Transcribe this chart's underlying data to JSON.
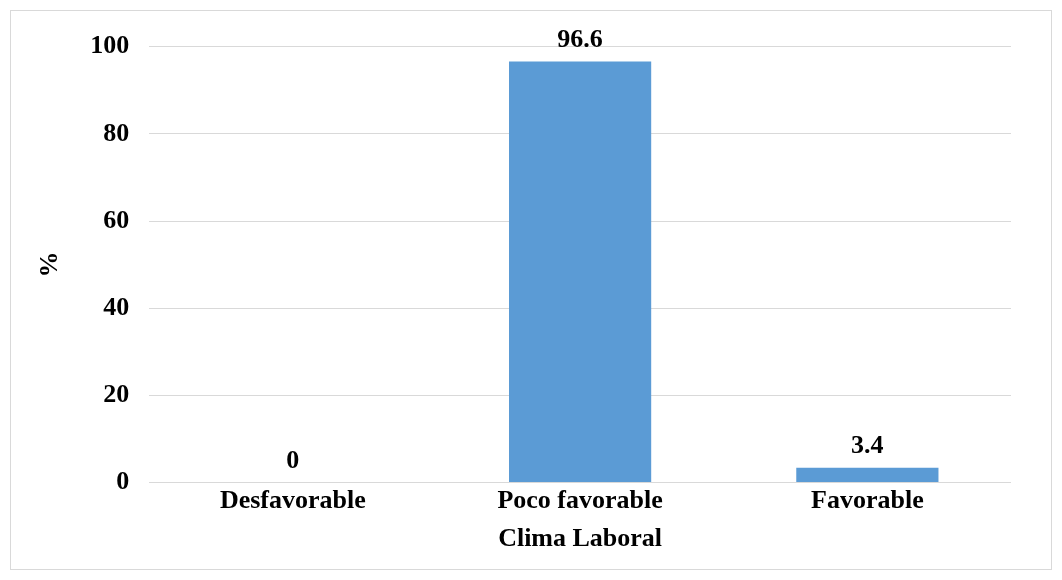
{
  "chart_data": {
    "type": "bar",
    "xlabel": "Clima Laboral",
    "ylabel": "%",
    "categories": [
      "Desfavorable",
      "Poco favorable",
      "Favorable"
    ],
    "values": [
      0,
      96.6,
      3.4
    ],
    "color": "#5b9bd5",
    "ylim": [
      0,
      100
    ],
    "yticks": [
      0,
      20,
      40,
      60,
      80,
      100
    ],
    "grid": "y",
    "data_labels": true,
    "legend": false
  }
}
